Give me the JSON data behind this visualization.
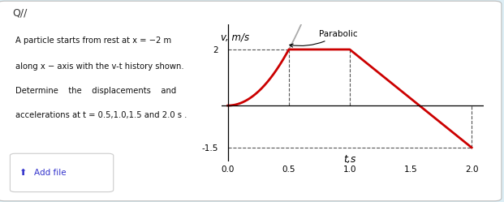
{
  "title": "Q//",
  "ylabel": "v, m/s",
  "xlabel": "t,s",
  "xlim": [
    -0.05,
    2.1
  ],
  "ylim": [
    -2.0,
    2.9
  ],
  "xticks": [
    0.0,
    0.5,
    1.0,
    1.5,
    2.0
  ],
  "xtick_labels": [
    "0.0",
    "0.5",
    "1.0",
    "1.5",
    "2.0"
  ],
  "ytick_2": 2,
  "ytick_neg": -1.5,
  "parabolic_label": "Parabolic",
  "red_color": "#cc0000",
  "gray_color": "#aaaaaa",
  "dash_color": "#555555",
  "bg_color": "#ffffff",
  "fig_bg": "#ddeef5",
  "text_color": "#111111",
  "link_color": "#3333cc",
  "problem_lines": [
    "A particle starts from rest at x = −2 m",
    "along x − axis with the v-t history shown.",
    "Determine    the    displacements    and",
    "accelerations at t = 0.5,1.0,1.5 and 2.0 s ."
  ]
}
